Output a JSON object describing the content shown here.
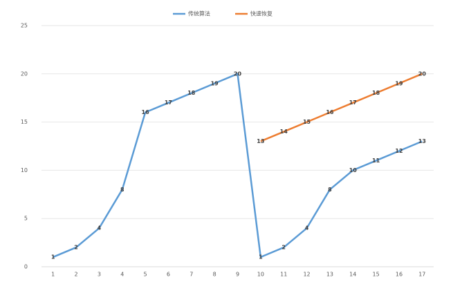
{
  "chart_data": {
    "type": "line",
    "categories": [
      "1",
      "2",
      "3",
      "4",
      "5",
      "6",
      "7",
      "8",
      "9",
      "10",
      "11",
      "12",
      "13",
      "14",
      "15",
      "16",
      "17"
    ],
    "series": [
      {
        "name": "传统算法",
        "color": "#5b9bd5",
        "values": [
          1,
          2,
          4,
          8,
          16,
          17,
          18,
          19,
          20,
          1,
          2,
          4,
          8,
          10,
          11,
          12,
          13
        ]
      },
      {
        "name": "快速恢复",
        "color": "#ed7d31",
        "values": [
          null,
          null,
          null,
          null,
          null,
          null,
          null,
          null,
          null,
          13,
          14,
          15,
          16,
          17,
          18,
          19,
          20
        ]
      }
    ],
    "ylim": [
      0,
      25
    ],
    "yticks": [
      0,
      5,
      10,
      15,
      20,
      25
    ],
    "grid": true,
    "legend": "top"
  }
}
